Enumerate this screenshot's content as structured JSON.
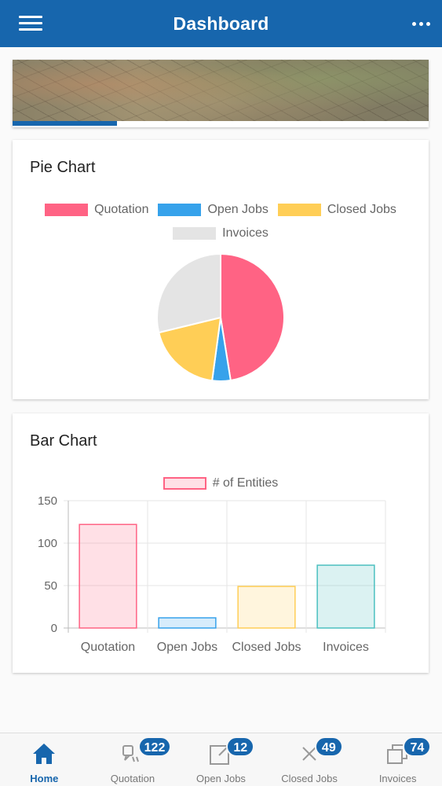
{
  "header": {
    "title": "Dashboard",
    "menu_icon": "hamburger-icon",
    "more_icon": "more-dots-icon"
  },
  "banner": {
    "progress": 0.25
  },
  "pie_card": {
    "title": "Pie Chart"
  },
  "bar_card": {
    "title": "Bar Chart"
  },
  "colors": {
    "primary": "#1766ad",
    "quotation": "#ff6384",
    "open_jobs": "#36a2eb",
    "closed_jobs": "#ffce56",
    "invoices": "#e4e4e4"
  },
  "chart_data": [
    {
      "type": "pie",
      "title": "Pie Chart",
      "categories": [
        "Quotation",
        "Open Jobs",
        "Closed Jobs",
        "Invoices"
      ],
      "values": [
        122,
        12,
        49,
        74
      ],
      "colors": [
        "#ff6384",
        "#36a2eb",
        "#ffce56",
        "#e4e4e4"
      ],
      "legend": "top"
    },
    {
      "type": "bar",
      "title": "Bar Chart",
      "categories": [
        "Quotation",
        "Open Jobs",
        "Closed Jobs",
        "Invoices"
      ],
      "series": [
        {
          "name": "# of Entities",
          "values": [
            122,
            12,
            49,
            74
          ]
        }
      ],
      "ylim": [
        0,
        150
      ],
      "yticks": [
        0,
        50,
        100,
        150
      ],
      "fill_colors": [
        "rgba(255,99,132,0.2)",
        "rgba(54,162,235,0.2)",
        "rgba(255,206,86,0.2)",
        "rgba(75,192,192,0.2)"
      ],
      "border_colors": [
        "#ff6384",
        "#36a2eb",
        "#ffce56",
        "#4bc0c0"
      ],
      "legend": "top",
      "grid": true
    }
  ],
  "bottom_nav": [
    {
      "label": "Home",
      "icon": "home-icon",
      "badge": null,
      "active": true
    },
    {
      "label": "Quotation",
      "icon": "quote-icon",
      "badge": "122",
      "active": false
    },
    {
      "label": "Open Jobs",
      "icon": "open-external-icon",
      "badge": "12",
      "active": false
    },
    {
      "label": "Closed Jobs",
      "icon": "close-x-icon",
      "badge": "49",
      "active": false
    },
    {
      "label": "Invoices",
      "icon": "copy-icon",
      "badge": "74",
      "active": false
    }
  ]
}
